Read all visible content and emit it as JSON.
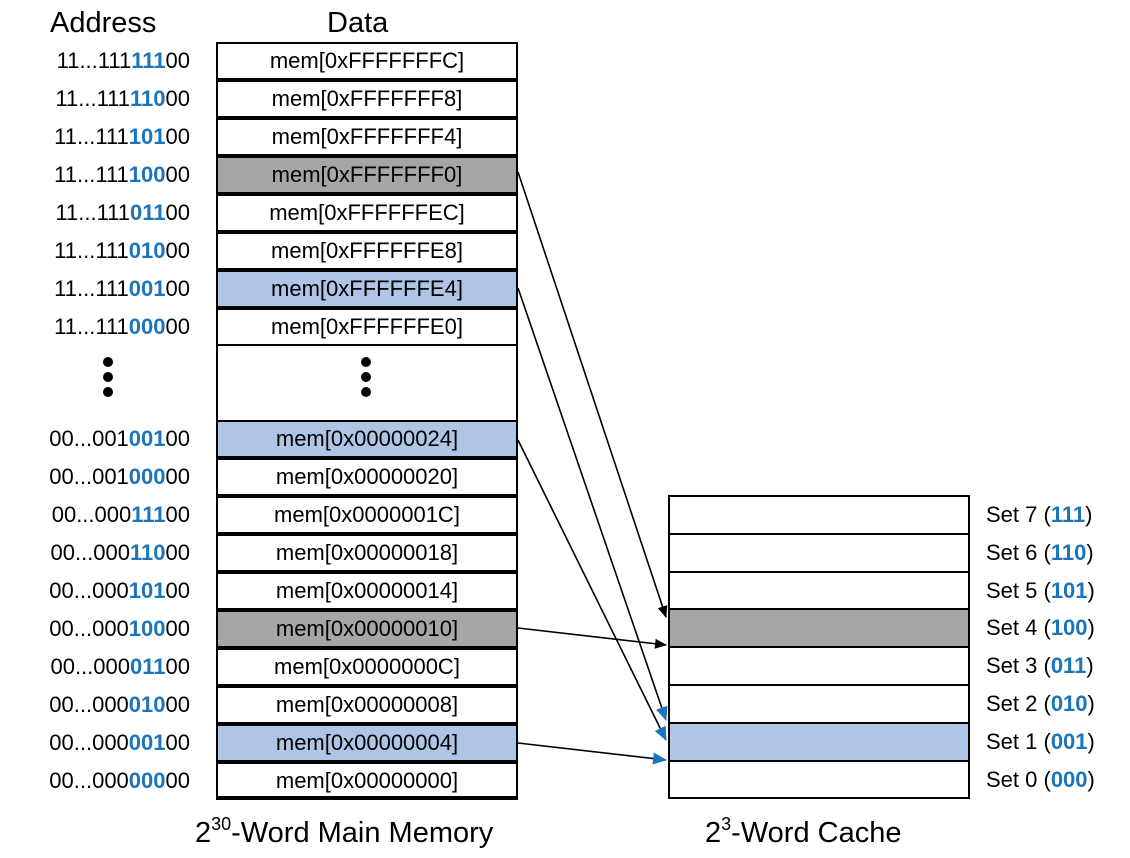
{
  "headers": {
    "address": "Address",
    "data": "Data"
  },
  "memory_rows": [
    {
      "addr_prefix": "11...111",
      "addr_set": "111",
      "addr_suffix": "00",
      "data": "mem[0xFFFFFFFC]",
      "highlight": "none"
    },
    {
      "addr_prefix": "11...111",
      "addr_set": "110",
      "addr_suffix": "00",
      "data": "mem[0xFFFFFFF8]",
      "highlight": "none"
    },
    {
      "addr_prefix": "11...111",
      "addr_set": "101",
      "addr_suffix": "00",
      "data": "mem[0xFFFFFFF4]",
      "highlight": "none"
    },
    {
      "addr_prefix": "11...111",
      "addr_set": "100",
      "addr_suffix": "00",
      "data": "mem[0xFFFFFFF0]",
      "highlight": "gray"
    },
    {
      "addr_prefix": "11...111",
      "addr_set": "011",
      "addr_suffix": "00",
      "data": "mem[0xFFFFFFEC]",
      "highlight": "none"
    },
    {
      "addr_prefix": "11...111",
      "addr_set": "010",
      "addr_suffix": "00",
      "data": "mem[0xFFFFFFE8]",
      "highlight": "none"
    },
    {
      "addr_prefix": "11...111",
      "addr_set": "001",
      "addr_suffix": "00",
      "data": "mem[0xFFFFFFE4]",
      "highlight": "blue"
    },
    {
      "addr_prefix": "11...111",
      "addr_set": "000",
      "addr_suffix": "00",
      "data": "mem[0xFFFFFFE0]",
      "highlight": "none"
    },
    {
      "addr_prefix": "00...001",
      "addr_set": "001",
      "addr_suffix": "00",
      "data": "mem[0x00000024]",
      "highlight": "blue"
    },
    {
      "addr_prefix": "00...001",
      "addr_set": "000",
      "addr_suffix": "00",
      "data": "mem[0x00000020]",
      "highlight": "none"
    },
    {
      "addr_prefix": "00...000",
      "addr_set": "111",
      "addr_suffix": "00",
      "data": "mem[0x0000001C]",
      "highlight": "none"
    },
    {
      "addr_prefix": "00...000",
      "addr_set": "110",
      "addr_suffix": "00",
      "data": "mem[0x00000018]",
      "highlight": "none"
    },
    {
      "addr_prefix": "00...000",
      "addr_set": "101",
      "addr_suffix": "00",
      "data": "mem[0x00000014]",
      "highlight": "none"
    },
    {
      "addr_prefix": "00...000",
      "addr_set": "100",
      "addr_suffix": "00",
      "data": "mem[0x00000010]",
      "highlight": "gray"
    },
    {
      "addr_prefix": "00...000",
      "addr_set": "011",
      "addr_suffix": "00",
      "data": "mem[0x0000000C]",
      "highlight": "none"
    },
    {
      "addr_prefix": "00...000",
      "addr_set": "010",
      "addr_suffix": "00",
      "data": "mem[0x00000008]",
      "highlight": "none"
    },
    {
      "addr_prefix": "00...000",
      "addr_set": "001",
      "addr_suffix": "00",
      "data": "mem[0x00000004]",
      "highlight": "blue"
    },
    {
      "addr_prefix": "00...000",
      "addr_set": "000",
      "addr_suffix": "00",
      "data": "mem[0x00000000]",
      "highlight": "none"
    }
  ],
  "cache_sets": [
    {
      "label": "Set 7 (",
      "bits": "111",
      "close": ")",
      "highlight": "none"
    },
    {
      "label": "Set 6 (",
      "bits": "110",
      "close": ")",
      "highlight": "none"
    },
    {
      "label": "Set 5 (",
      "bits": "101",
      "close": ")",
      "highlight": "none"
    },
    {
      "label": "Set 4 (",
      "bits": "100",
      "close": ")",
      "highlight": "gray"
    },
    {
      "label": "Set 3 (",
      "bits": "011",
      "close": ")",
      "highlight": "none"
    },
    {
      "label": "Set 2 (",
      "bits": "010",
      "close": ")",
      "highlight": "none"
    },
    {
      "label": "Set 1 (",
      "bits": "001",
      "close": ")",
      "highlight": "blue"
    },
    {
      "label": "Set 0 (",
      "bits": "000",
      "close": ")",
      "highlight": "none"
    }
  ],
  "captions": {
    "memory_base": "2",
    "memory_exp": "30",
    "memory_text": "-Word Main Memory",
    "cache_base": "2",
    "cache_exp": "3",
    "cache_text": "-Word Cache"
  },
  "colors": {
    "gray": "#a6a6a6",
    "light_blue": "#aec5e6",
    "blue_text": "#1a75bc",
    "blue_arrow": "#1a75bc"
  },
  "mappings": [
    {
      "from": "mem[0xFFFFFFF0]",
      "to": "Set 4",
      "color": "black"
    },
    {
      "from": "mem[0x00000010]",
      "to": "Set 4",
      "color": "black"
    },
    {
      "from": "mem[0xFFFFFFE4]",
      "to": "Set 1",
      "color": "blue"
    },
    {
      "from": "mem[0x00000024]",
      "to": "Set 1",
      "color": "blue"
    },
    {
      "from": "mem[0x00000004]",
      "to": "Set 1",
      "color": "blue"
    }
  ]
}
